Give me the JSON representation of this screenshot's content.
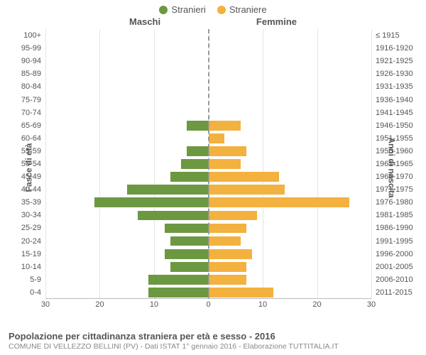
{
  "legend": {
    "male": {
      "label": "Stranieri",
      "color": "#6d9842"
    },
    "female": {
      "label": "Straniere",
      "color": "#f3b13f"
    }
  },
  "side_titles": {
    "left": "Maschi",
    "right": "Femmine"
  },
  "axis_titles": {
    "left": "Fasce di età",
    "right": "Anni di nascita"
  },
  "chart": {
    "type": "population-pyramid",
    "x_max": 30,
    "x_ticks": [
      0,
      10,
      20,
      30
    ],
    "grid_color": "#e5e5e5",
    "center_dash_color": "#999999",
    "background_color": "#ffffff",
    "tick_fontsize": 11,
    "label_fontsize": 11,
    "bar_fill_height_pct": 76
  },
  "rows": [
    {
      "age": "0-4",
      "years": "2011-2015",
      "male": 11,
      "female": 12
    },
    {
      "age": "5-9",
      "years": "2006-2010",
      "male": 11,
      "female": 7
    },
    {
      "age": "10-14",
      "years": "2001-2005",
      "male": 7,
      "female": 7
    },
    {
      "age": "15-19",
      "years": "1996-2000",
      "male": 8,
      "female": 8
    },
    {
      "age": "20-24",
      "years": "1991-1995",
      "male": 7,
      "female": 6
    },
    {
      "age": "25-29",
      "years": "1986-1990",
      "male": 8,
      "female": 7
    },
    {
      "age": "30-34",
      "years": "1981-1985",
      "male": 13,
      "female": 9
    },
    {
      "age": "35-39",
      "years": "1976-1980",
      "male": 21,
      "female": 26
    },
    {
      "age": "40-44",
      "years": "1971-1975",
      "male": 15,
      "female": 14
    },
    {
      "age": "45-49",
      "years": "1966-1970",
      "male": 7,
      "female": 13
    },
    {
      "age": "50-54",
      "years": "1961-1965",
      "male": 5,
      "female": 6
    },
    {
      "age": "55-59",
      "years": "1956-1960",
      "male": 4,
      "female": 7
    },
    {
      "age": "60-64",
      "years": "1951-1955",
      "male": 0,
      "female": 3
    },
    {
      "age": "65-69",
      "years": "1946-1950",
      "male": 4,
      "female": 6
    },
    {
      "age": "70-74",
      "years": "1941-1945",
      "male": 0,
      "female": 0
    },
    {
      "age": "75-79",
      "years": "1936-1940",
      "male": 0,
      "female": 0
    },
    {
      "age": "80-84",
      "years": "1931-1935",
      "male": 0,
      "female": 0
    },
    {
      "age": "85-89",
      "years": "1926-1930",
      "male": 0,
      "female": 0
    },
    {
      "age": "90-94",
      "years": "1921-1925",
      "male": 0,
      "female": 0
    },
    {
      "age": "95-99",
      "years": "1916-1920",
      "male": 0,
      "female": 0
    },
    {
      "age": "100+",
      "years": "≤ 1915",
      "male": 0,
      "female": 0
    }
  ],
  "footer": {
    "title": "Popolazione per cittadinanza straniera per età e sesso - 2016",
    "subtitle": "COMUNE DI VELLEZZO BELLINI (PV) - Dati ISTAT 1° gennaio 2016 - Elaborazione TUTTITALIA.IT"
  }
}
